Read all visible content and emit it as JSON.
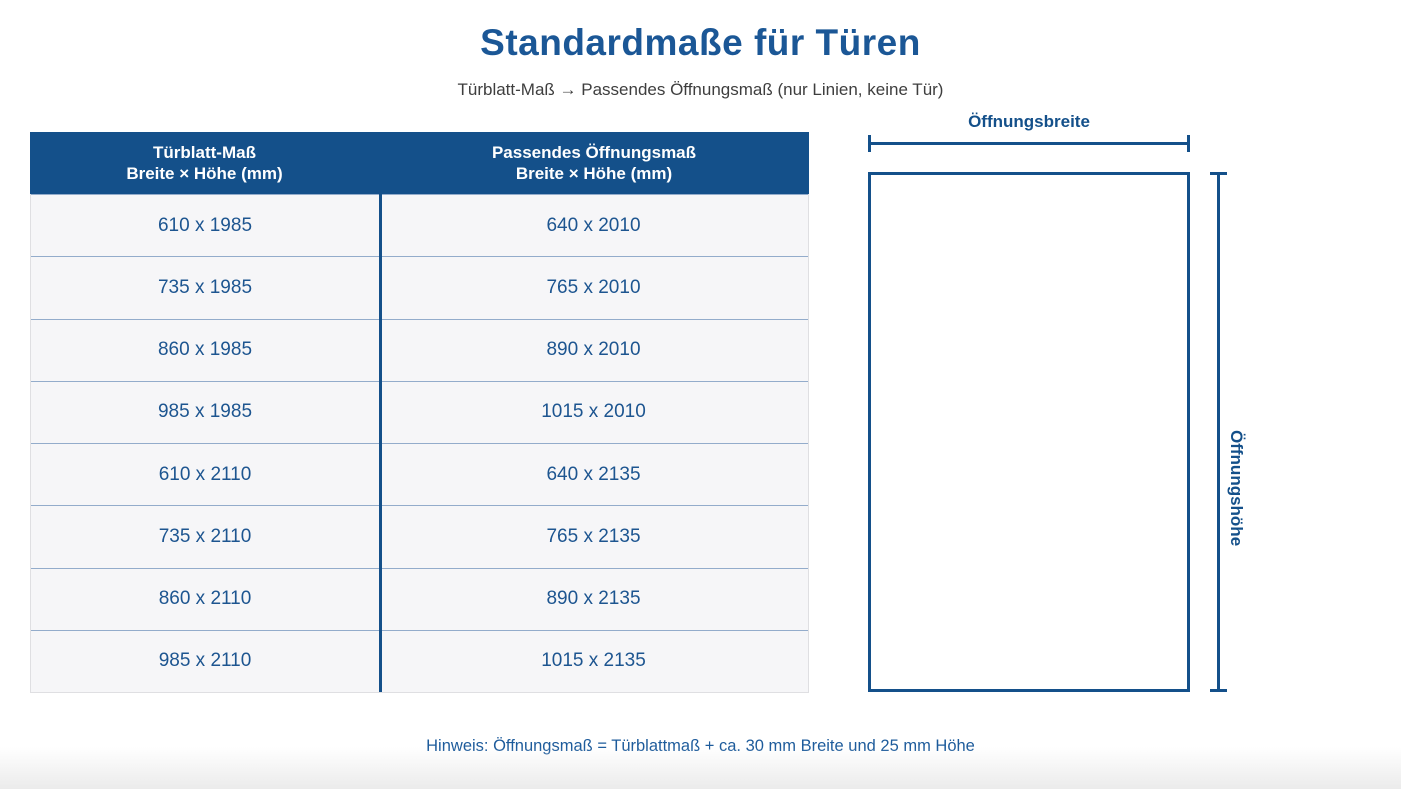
{
  "page": {
    "title": "Standardmaße für Türen",
    "subtitle": "Türblatt-Maß → Passendes Öffnungsmaß (nur Linien, keine Tür)",
    "note": "Hinweis: Öffnungsmaß = Türblattmaß + ca. 30 mm Breite und 25 mm Höhe"
  },
  "table": {
    "headers": [
      {
        "line1": "Türblatt-Maß",
        "line2": "Breite × Höhe (mm)"
      },
      {
        "line1": "Passendes Öffnungsmaß",
        "line2": "Breite × Höhe (mm)"
      }
    ],
    "rows": [
      {
        "tuerblatt": "610 x 1985",
        "oeffnung": "640 x 2010"
      },
      {
        "tuerblatt": "735 x 1985",
        "oeffnung": "765 x 2010"
      },
      {
        "tuerblatt": "860 x 1985",
        "oeffnung": "890 x 2010"
      },
      {
        "tuerblatt": "985 x 1985",
        "oeffnung": "1015 x 2010"
      },
      {
        "tuerblatt": "610 x 2110",
        "oeffnung": "640 x 2135"
      },
      {
        "tuerblatt": "735 x 2110",
        "oeffnung": "765 x 2135"
      },
      {
        "tuerblatt": "860 x 2110",
        "oeffnung": "890 x 2135"
      },
      {
        "tuerblatt": "985 x 2110",
        "oeffnung": "1015 x 2135"
      }
    ]
  },
  "diagram": {
    "width_label": "Öffnungsbreite",
    "height_label": "Öffnungshöhe"
  },
  "colors": {
    "primary_blue": "#14508a",
    "title_blue": "#1b5796",
    "cell_text_blue": "#1d5590",
    "note_blue": "#1d5b9b",
    "header_text": "#ffffff",
    "row_background": "#f6f6f8",
    "row_separator": "#93accb",
    "table_outer_border": "#dfdfe2",
    "subtitle_gray": "#3e3e3e"
  }
}
